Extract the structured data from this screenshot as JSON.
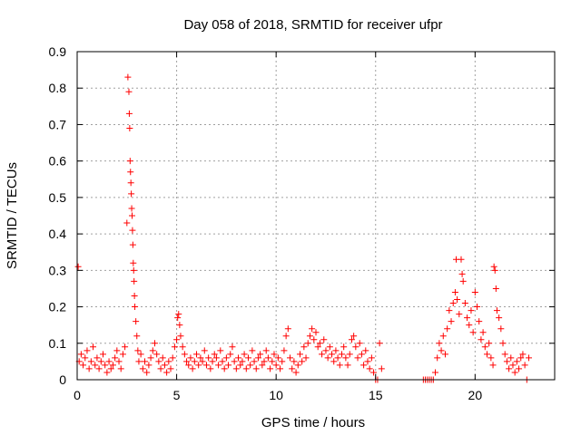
{
  "chart_data": {
    "type": "scatter",
    "title": "Day 058 of 2018, SRMTID for receiver ufpr",
    "xlabel": "GPS time / hours",
    "ylabel": "SRMTID / TECUs",
    "xlim": [
      0,
      24
    ],
    "ylim": [
      0,
      0.9
    ],
    "x_ticks": [
      0,
      5,
      10,
      15,
      20
    ],
    "x_tick_labels": [
      "0",
      "5",
      "10",
      "15",
      "20"
    ],
    "y_ticks": [
      0,
      0.1,
      0.2,
      0.3,
      0.4,
      0.5,
      0.6,
      0.7,
      0.8,
      0.9
    ],
    "y_tick_labels": [
      "0",
      "0.1",
      "0.2",
      "0.3",
      "0.4",
      "0.5",
      "0.6",
      "0.7",
      "0.8",
      "0.9"
    ],
    "grid": true,
    "marker": "+",
    "color": "#ff0000",
    "series": [
      {
        "name": "SRMTID",
        "points": [
          [
            0.05,
            0.31
          ],
          [
            0.1,
            0.05
          ],
          [
            0.2,
            0.07
          ],
          [
            0.3,
            0.04
          ],
          [
            0.4,
            0.06
          ],
          [
            0.5,
            0.08
          ],
          [
            0.6,
            0.03
          ],
          [
            0.7,
            0.05
          ],
          [
            0.8,
            0.09
          ],
          [
            0.9,
            0.04
          ],
          [
            1.0,
            0.06
          ],
          [
            1.1,
            0.03
          ],
          [
            1.2,
            0.05
          ],
          [
            1.3,
            0.07
          ],
          [
            1.4,
            0.04
          ],
          [
            1.5,
            0.02
          ],
          [
            1.6,
            0.05
          ],
          [
            1.7,
            0.03
          ],
          [
            1.8,
            0.04
          ],
          [
            1.9,
            0.06
          ],
          [
            2.0,
            0.08
          ],
          [
            2.1,
            0.05
          ],
          [
            2.2,
            0.03
          ],
          [
            2.3,
            0.07
          ],
          [
            2.4,
            0.09
          ],
          [
            2.5,
            0.43
          ],
          [
            2.55,
            0.83
          ],
          [
            2.6,
            0.79
          ],
          [
            2.62,
            0.73
          ],
          [
            2.64,
            0.69
          ],
          [
            2.66,
            0.6
          ],
          [
            2.68,
            0.57
          ],
          [
            2.7,
            0.54
          ],
          [
            2.72,
            0.51
          ],
          [
            2.74,
            0.47
          ],
          [
            2.76,
            0.45
          ],
          [
            2.78,
            0.41
          ],
          [
            2.8,
            0.37
          ],
          [
            2.82,
            0.32
          ],
          [
            2.84,
            0.3
          ],
          [
            2.86,
            0.27
          ],
          [
            2.88,
            0.23
          ],
          [
            2.9,
            0.2
          ],
          [
            2.95,
            0.16
          ],
          [
            3.0,
            0.12
          ],
          [
            3.05,
            0.08
          ],
          [
            3.1,
            0.05
          ],
          [
            3.2,
            0.07
          ],
          [
            3.3,
            0.03
          ],
          [
            3.4,
            0.05
          ],
          [
            3.5,
            0.02
          ],
          [
            3.6,
            0.04
          ],
          [
            3.7,
            0.06
          ],
          [
            3.8,
            0.08
          ],
          [
            3.9,
            0.1
          ],
          [
            4.0,
            0.07
          ],
          [
            4.1,
            0.05
          ],
          [
            4.2,
            0.03
          ],
          [
            4.3,
            0.06
          ],
          [
            4.4,
            0.04
          ],
          [
            4.5,
            0.02
          ],
          [
            4.6,
            0.05
          ],
          [
            4.7,
            0.03
          ],
          [
            4.8,
            0.06
          ],
          [
            4.9,
            0.09
          ],
          [
            5.0,
            0.11
          ],
          [
            5.05,
            0.17
          ],
          [
            5.1,
            0.18
          ],
          [
            5.15,
            0.15
          ],
          [
            5.2,
            0.12
          ],
          [
            5.3,
            0.09
          ],
          [
            5.4,
            0.07
          ],
          [
            5.5,
            0.05
          ],
          [
            5.6,
            0.04
          ],
          [
            5.7,
            0.06
          ],
          [
            5.8,
            0.03
          ],
          [
            5.9,
            0.05
          ],
          [
            6.0,
            0.07
          ],
          [
            6.1,
            0.04
          ],
          [
            6.2,
            0.06
          ],
          [
            6.3,
            0.05
          ],
          [
            6.4,
            0.08
          ],
          [
            6.5,
            0.04
          ],
          [
            6.6,
            0.06
          ],
          [
            6.7,
            0.03
          ],
          [
            6.8,
            0.05
          ],
          [
            6.9,
            0.07
          ],
          [
            7.0,
            0.06
          ],
          [
            7.1,
            0.04
          ],
          [
            7.2,
            0.08
          ],
          [
            7.3,
            0.05
          ],
          [
            7.4,
            0.03
          ],
          [
            7.5,
            0.06
          ],
          [
            7.6,
            0.04
          ],
          [
            7.7,
            0.07
          ],
          [
            7.8,
            0.09
          ],
          [
            7.9,
            0.05
          ],
          [
            8.0,
            0.03
          ],
          [
            8.1,
            0.06
          ],
          [
            8.2,
            0.04
          ],
          [
            8.3,
            0.05
          ],
          [
            8.4,
            0.07
          ],
          [
            8.5,
            0.03
          ],
          [
            8.6,
            0.06
          ],
          [
            8.7,
            0.04
          ],
          [
            8.8,
            0.08
          ],
          [
            8.9,
            0.05
          ],
          [
            9.0,
            0.03
          ],
          [
            9.1,
            0.06
          ],
          [
            9.2,
            0.07
          ],
          [
            9.3,
            0.04
          ],
          [
            9.4,
            0.05
          ],
          [
            9.5,
            0.08
          ],
          [
            9.6,
            0.06
          ],
          [
            9.7,
            0.03
          ],
          [
            9.8,
            0.05
          ],
          [
            9.9,
            0.07
          ],
          [
            10.0,
            0.04
          ],
          [
            10.1,
            0.06
          ],
          [
            10.2,
            0.03
          ],
          [
            10.3,
            0.05
          ],
          [
            10.4,
            0.08
          ],
          [
            10.5,
            0.12
          ],
          [
            10.6,
            0.14
          ],
          [
            10.7,
            0.06
          ],
          [
            10.8,
            0.03
          ],
          [
            10.9,
            0.05
          ],
          [
            11.0,
            0.02
          ],
          [
            11.1,
            0.04
          ],
          [
            11.2,
            0.07
          ],
          [
            11.3,
            0.05
          ],
          [
            11.4,
            0.09
          ],
          [
            11.5,
            0.06
          ],
          [
            11.6,
            0.1
          ],
          [
            11.7,
            0.12
          ],
          [
            11.8,
            0.14
          ],
          [
            11.9,
            0.11
          ],
          [
            12.0,
            0.13
          ],
          [
            12.1,
            0.09
          ],
          [
            12.2,
            0.1
          ],
          [
            12.3,
            0.07
          ],
          [
            12.4,
            0.11
          ],
          [
            12.5,
            0.08
          ],
          [
            12.6,
            0.06
          ],
          [
            12.7,
            0.09
          ],
          [
            12.8,
            0.07
          ],
          [
            12.9,
            0.05
          ],
          [
            13.0,
            0.08
          ],
          [
            13.1,
            0.06
          ],
          [
            13.2,
            0.04
          ],
          [
            13.3,
            0.07
          ],
          [
            13.4,
            0.09
          ],
          [
            13.5,
            0.06
          ],
          [
            13.6,
            0.04
          ],
          [
            13.7,
            0.07
          ],
          [
            13.8,
            0.11
          ],
          [
            13.9,
            0.12
          ],
          [
            14.0,
            0.09
          ],
          [
            14.1,
            0.06
          ],
          [
            14.2,
            0.1
          ],
          [
            14.3,
            0.07
          ],
          [
            14.4,
            0.04
          ],
          [
            14.5,
            0.08
          ],
          [
            14.6,
            0.05
          ],
          [
            14.7,
            0.03
          ],
          [
            14.8,
            0.06
          ],
          [
            14.9,
            0.02
          ],
          [
            15.0,
            0.0
          ],
          [
            15.1,
            0.0
          ],
          [
            15.2,
            0.1
          ],
          [
            15.3,
            0.03
          ],
          [
            17.4,
            0.0
          ],
          [
            17.5,
            0.0
          ],
          [
            17.6,
            0.0
          ],
          [
            17.7,
            0.0
          ],
          [
            17.8,
            0.0
          ],
          [
            17.9,
            0.0
          ],
          [
            18.0,
            0.02
          ],
          [
            18.1,
            0.06
          ],
          [
            18.2,
            0.1
          ],
          [
            18.3,
            0.08
          ],
          [
            18.4,
            0.12
          ],
          [
            18.5,
            0.07
          ],
          [
            18.6,
            0.14
          ],
          [
            18.7,
            0.19
          ],
          [
            18.8,
            0.16
          ],
          [
            18.9,
            0.21
          ],
          [
            19.0,
            0.24
          ],
          [
            19.05,
            0.33
          ],
          [
            19.1,
            0.22
          ],
          [
            19.2,
            0.18
          ],
          [
            19.3,
            0.33
          ],
          [
            19.35,
            0.29
          ],
          [
            19.4,
            0.27
          ],
          [
            19.5,
            0.21
          ],
          [
            19.6,
            0.17
          ],
          [
            19.7,
            0.15
          ],
          [
            19.8,
            0.19
          ],
          [
            19.9,
            0.13
          ],
          [
            20.0,
            0.24
          ],
          [
            20.1,
            0.2
          ],
          [
            20.2,
            0.16
          ],
          [
            20.3,
            0.11
          ],
          [
            20.4,
            0.13
          ],
          [
            20.5,
            0.09
          ],
          [
            20.6,
            0.07
          ],
          [
            20.7,
            0.1
          ],
          [
            20.8,
            0.06
          ],
          [
            20.9,
            0.04
          ],
          [
            20.95,
            0.31
          ],
          [
            21.0,
            0.3
          ],
          [
            21.05,
            0.25
          ],
          [
            21.1,
            0.19
          ],
          [
            21.2,
            0.17
          ],
          [
            21.3,
            0.14
          ],
          [
            21.4,
            0.1
          ],
          [
            21.5,
            0.07
          ],
          [
            21.6,
            0.05
          ],
          [
            21.7,
            0.03
          ],
          [
            21.8,
            0.06
          ],
          [
            21.9,
            0.04
          ],
          [
            22.0,
            0.02
          ],
          [
            22.1,
            0.05
          ],
          [
            22.2,
            0.03
          ],
          [
            22.3,
            0.06
          ],
          [
            22.4,
            0.07
          ],
          [
            22.5,
            0.04
          ],
          [
            22.6,
            0.0
          ],
          [
            22.7,
            0.06
          ]
        ]
      }
    ]
  }
}
